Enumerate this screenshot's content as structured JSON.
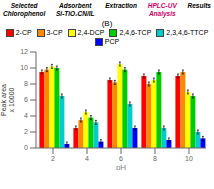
{
  "chart_data": {
    "type": "bar",
    "title": "(B)",
    "annotations": [
      {
        "text": "Selected\nChlorophenol"
      },
      {
        "text": "Adsorbent\nSi-TiO₂CN/IL"
      },
      {
        "text": "Extraction"
      },
      {
        "text": "HPLC-UV\nAnalysis",
        "color": "#cc0066"
      },
      {
        "text": "Results"
      }
    ],
    "x_label": "pH",
    "y_label": "Peak area\nx 10000",
    "categories": [
      "2",
      "4",
      "6",
      "8",
      "10"
    ],
    "series": [
      {
        "name": "2-CP",
        "color": "#ff0000",
        "values": [
          9.5,
          2.5,
          8.5,
          9.0,
          9.0
        ],
        "errors": [
          0.25,
          0.25,
          0.25,
          0.25,
          0.25
        ]
      },
      {
        "name": "3-CP",
        "color": "#ff8800",
        "values": [
          9.8,
          3.5,
          8.2,
          8.0,
          9.5
        ],
        "errors": [
          0.25,
          0.25,
          0.25,
          0.25,
          0.25
        ]
      },
      {
        "name": "2,4-DCP",
        "color": "#ffff00",
        "values": [
          10.2,
          4.5,
          10.5,
          8.5,
          7.0
        ],
        "errors": [
          0.25,
          0.25,
          0.25,
          0.25,
          0.25
        ]
      },
      {
        "name": "2,4,6-TCP",
        "color": "#00cc00",
        "values": [
          10.0,
          3.8,
          9.8,
          9.5,
          6.5
        ],
        "errors": [
          0.25,
          0.25,
          0.25,
          0.25,
          0.25
        ]
      },
      {
        "name": "2,3,4,6-TTCP",
        "color": "#00cccc",
        "values": [
          6.5,
          3.2,
          5.5,
          2.5,
          2.0
        ],
        "errors": [
          0.25,
          0.25,
          0.25,
          0.25,
          0.25
        ]
      },
      {
        "name": "PCP",
        "color": "#0000ff",
        "values": [
          0.5,
          0.8,
          2.5,
          1.0,
          1.2
        ],
        "errors": [
          0.25,
          0.25,
          0.25,
          0.25,
          0.25
        ]
      }
    ],
    "ylim": [
      0,
      12
    ],
    "yticks": [
      0,
      2,
      4,
      6,
      8,
      10,
      12
    ],
    "grid": false,
    "legend": "top"
  }
}
